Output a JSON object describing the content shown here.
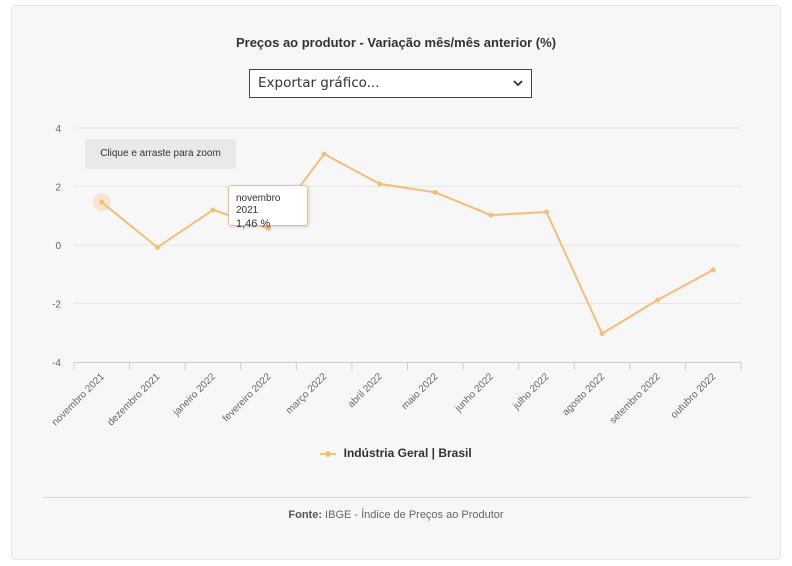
{
  "header": {
    "title": "Preços ao produtor - Variação mês/mês anterior (%)",
    "export_select": {
      "value": "Exportar gráfico...",
      "icon": "chevron-down-icon"
    }
  },
  "zoom_hint": "Clique e arraste para zoom",
  "tooltip": {
    "date": "novembro 2021",
    "value": "1,46 %"
  },
  "legend": {
    "label": "Indústria Geral | Brasil"
  },
  "source": {
    "label": "Fonte:",
    "text": " IBGE - Índice de Preços ao Produtor"
  },
  "colors": {
    "series": "#f2bf7a",
    "grid": "#e6e6e6",
    "axis": "#cccccc",
    "text": "#666666"
  },
  "chart_data": {
    "type": "line",
    "title": "Preços ao produtor - Variação mês/mês anterior (%)",
    "xlabel": "",
    "ylabel": "",
    "categories": [
      "novembro 2021",
      "dezembro 2021",
      "janeiro 2022",
      "fevereiro 2022",
      "março 2022",
      "abril 2022",
      "maio 2022",
      "junho 2022",
      "julho 2022",
      "agosto 2022",
      "setembro 2022",
      "outubro 2022"
    ],
    "series": [
      {
        "name": "Indústria Geral | Brasil",
        "values": [
          1.46,
          -0.08,
          1.2,
          0.57,
          3.11,
          2.09,
          1.8,
          1.02,
          1.13,
          -3.03,
          -1.88,
          -0.85
        ]
      }
    ],
    "yticks": [
      4,
      2,
      0,
      -2,
      -4
    ],
    "ylim": [
      -4,
      4
    ],
    "grid": true,
    "legend_position": "bottom-center",
    "highlighted_point": 0
  }
}
